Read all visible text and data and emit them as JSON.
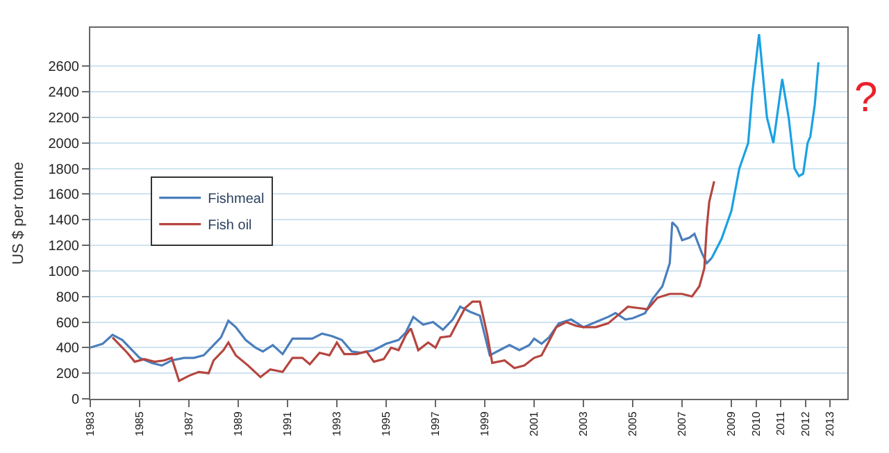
{
  "chart_data": {
    "type": "line",
    "ylabel": "US $ per tonne",
    "xlim": [
      1983,
      2013.7
    ],
    "xticks": [
      1983,
      1985,
      1987,
      1989,
      1991,
      1993,
      1995,
      1997,
      1999,
      2001,
      2003,
      2005,
      2007,
      2009,
      2010,
      2011,
      2012,
      2013
    ],
    "ylim": [
      0,
      2900
    ],
    "yticks": [
      0,
      200,
      400,
      600,
      800,
      1000,
      1200,
      1400,
      1600,
      1800,
      2000,
      2200,
      2400,
      2600
    ],
    "grid": "y",
    "legend": "top left",
    "marker": "none",
    "line_style": "solid",
    "annotations": [
      "?"
    ],
    "series": [
      {
        "name": "Fishmeal",
        "color": "#4a7ebb",
        "x": [
          1983,
          1983.5,
          1983.9,
          1984.3,
          1984.7,
          1985,
          1985.5,
          1985.9,
          1986.3,
          1986.8,
          1987.2,
          1987.6,
          1988,
          1988.3,
          1988.6,
          1988.9,
          1989.3,
          1989.7,
          1990,
          1990.4,
          1990.8,
          1991.2,
          1991.6,
          1992,
          1992.4,
          1992.8,
          1993.2,
          1993.6,
          1994,
          1994.5,
          1995,
          1995.5,
          1995.8,
          1996.1,
          1996.5,
          1996.9,
          1997.3,
          1997.7,
          1998,
          1998.4,
          1998.8,
          1999.2,
          1999.6,
          2000,
          2000.4,
          2000.8,
          2001,
          2001.3,
          2001.6,
          2002,
          2002.5,
          2003,
          2003.5,
          2004,
          2004.3,
          2004.7,
          2005,
          2005.5,
          2005.8,
          2006.2,
          2006.5,
          2006.6,
          2006.8,
          2007,
          2007.3,
          2007.5,
          2007.8,
          2008,
          2008.2
        ],
        "values": [
          400,
          430,
          500,
          460,
          380,
          320,
          280,
          260,
          300,
          320,
          320,
          340,
          420,
          480,
          610,
          560,
          460,
          400,
          370,
          420,
          350,
          470,
          470,
          470,
          510,
          490,
          460,
          370,
          360,
          380,
          430,
          460,
          520,
          640,
          580,
          600,
          540,
          620,
          720,
          680,
          650,
          340,
          380,
          420,
          380,
          420,
          470,
          430,
          480,
          590,
          620,
          560,
          600,
          640,
          670,
          620,
          630,
          670,
          780,
          880,
          1060,
          1380,
          1340,
          1240,
          1260,
          1290,
          1140,
          1060,
          1100
        ]
      },
      {
        "name": "Fish oil",
        "color": "#b5453f",
        "x": [
          1983.9,
          1984.5,
          1984.8,
          1985.2,
          1985.6,
          1986,
          1986.3,
          1986.6,
          1987,
          1987.4,
          1987.8,
          1988,
          1988.4,
          1988.6,
          1988.9,
          1989.4,
          1989.9,
          1990.3,
          1990.8,
          1991.2,
          1991.6,
          1991.9,
          1992.3,
          1992.7,
          1993,
          1993.3,
          1993.8,
          1994.2,
          1994.5,
          1994.9,
          1995.2,
          1995.5,
          1995.8,
          1996,
          1996.3,
          1996.7,
          1997,
          1997.2,
          1997.6,
          1997.9,
          1998.2,
          1998.5,
          1998.8,
          1999.1,
          1999.3,
          1999.8,
          2000.2,
          2000.6,
          2001,
          2001.3,
          2001.6,
          2001.9,
          2002.3,
          2002.7,
          2003,
          2003.5,
          2004,
          2004.5,
          2004.8,
          2005.2,
          2005.6,
          2006,
          2006.5,
          2007,
          2007.4,
          2007.7,
          2007.9,
          2008,
          2008.1,
          2008.3
        ],
        "values": [
          480,
          360,
          290,
          310,
          290,
          300,
          320,
          140,
          180,
          210,
          200,
          300,
          380,
          440,
          340,
          260,
          170,
          230,
          210,
          320,
          320,
          270,
          360,
          340,
          440,
          350,
          350,
          370,
          290,
          310,
          400,
          380,
          500,
          550,
          380,
          440,
          400,
          480,
          490,
          600,
          710,
          760,
          760,
          500,
          280,
          300,
          240,
          260,
          320,
          340,
          450,
          560,
          600,
          570,
          560,
          560,
          590,
          670,
          720,
          710,
          700,
          790,
          820,
          820,
          800,
          880,
          1020,
          1340,
          1540,
          1700
        ]
      },
      {
        "color": "#1ba1e2",
        "x": [
          2008.2,
          2008.6,
          2009,
          2009.32,
          2009.68,
          2009.85,
          2010.12,
          2010.44,
          2010.7,
          2011.06,
          2011.32,
          2011.56,
          2011.74,
          2011.91,
          2012.09,
          2012.2,
          2012.38,
          2012.53
        ],
        "values": [
          1100,
          1250,
          1470,
          1800,
          2000,
          2400,
          2850,
          2200,
          2000,
          2500,
          2200,
          1800,
          1740,
          1760,
          2000,
          2050,
          2300,
          2630
        ]
      }
    ]
  }
}
